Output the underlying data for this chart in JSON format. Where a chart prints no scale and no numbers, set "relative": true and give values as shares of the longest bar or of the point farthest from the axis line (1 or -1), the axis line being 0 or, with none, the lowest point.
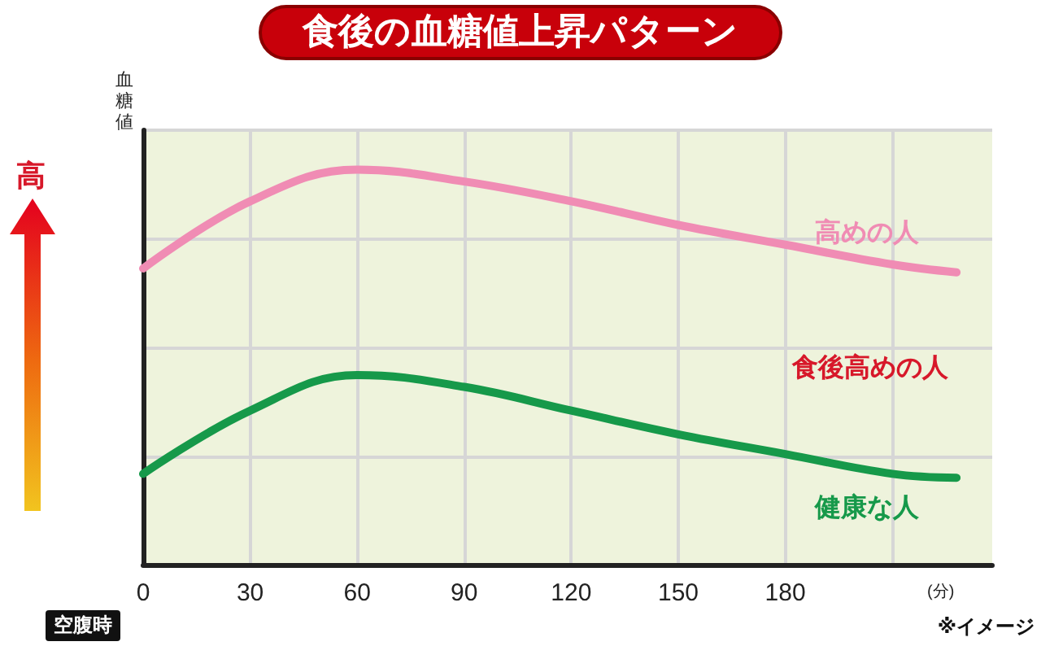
{
  "chart_data": {
    "type": "line",
    "title": "食後の血糖値上昇パターン",
    "xlabel": "(分)",
    "ylabel": "血糖値",
    "relative": true,
    "x": [
      0,
      30,
      60,
      90,
      120,
      150,
      180,
      210,
      228
    ],
    "xlim": [
      0,
      238
    ],
    "xticks": [
      0,
      30,
      60,
      90,
      120,
      150,
      180,
      {
        "value": 210,
        "label": null
      }
    ],
    "series": [
      {
        "name": "高めの人",
        "color": "#f08cb4",
        "values": [
          0.75,
          0.92,
          1,
          0.97,
          0.92,
          0.86,
          0.81,
          0.76,
          0.74
        ]
      },
      {
        "name": "健康な人",
        "color": "#16994a",
        "values": [
          0.23,
          0.39,
          0.48,
          0.45,
          0.39,
          0.33,
          0.28,
          0.23,
          0.22
        ]
      }
    ],
    "annotations": [
      "食後高めの人",
      "高",
      "空腹時",
      "※イメージ"
    ],
    "grid": true,
    "legend": false,
    "marker": "none",
    "line_style": "solid"
  }
}
